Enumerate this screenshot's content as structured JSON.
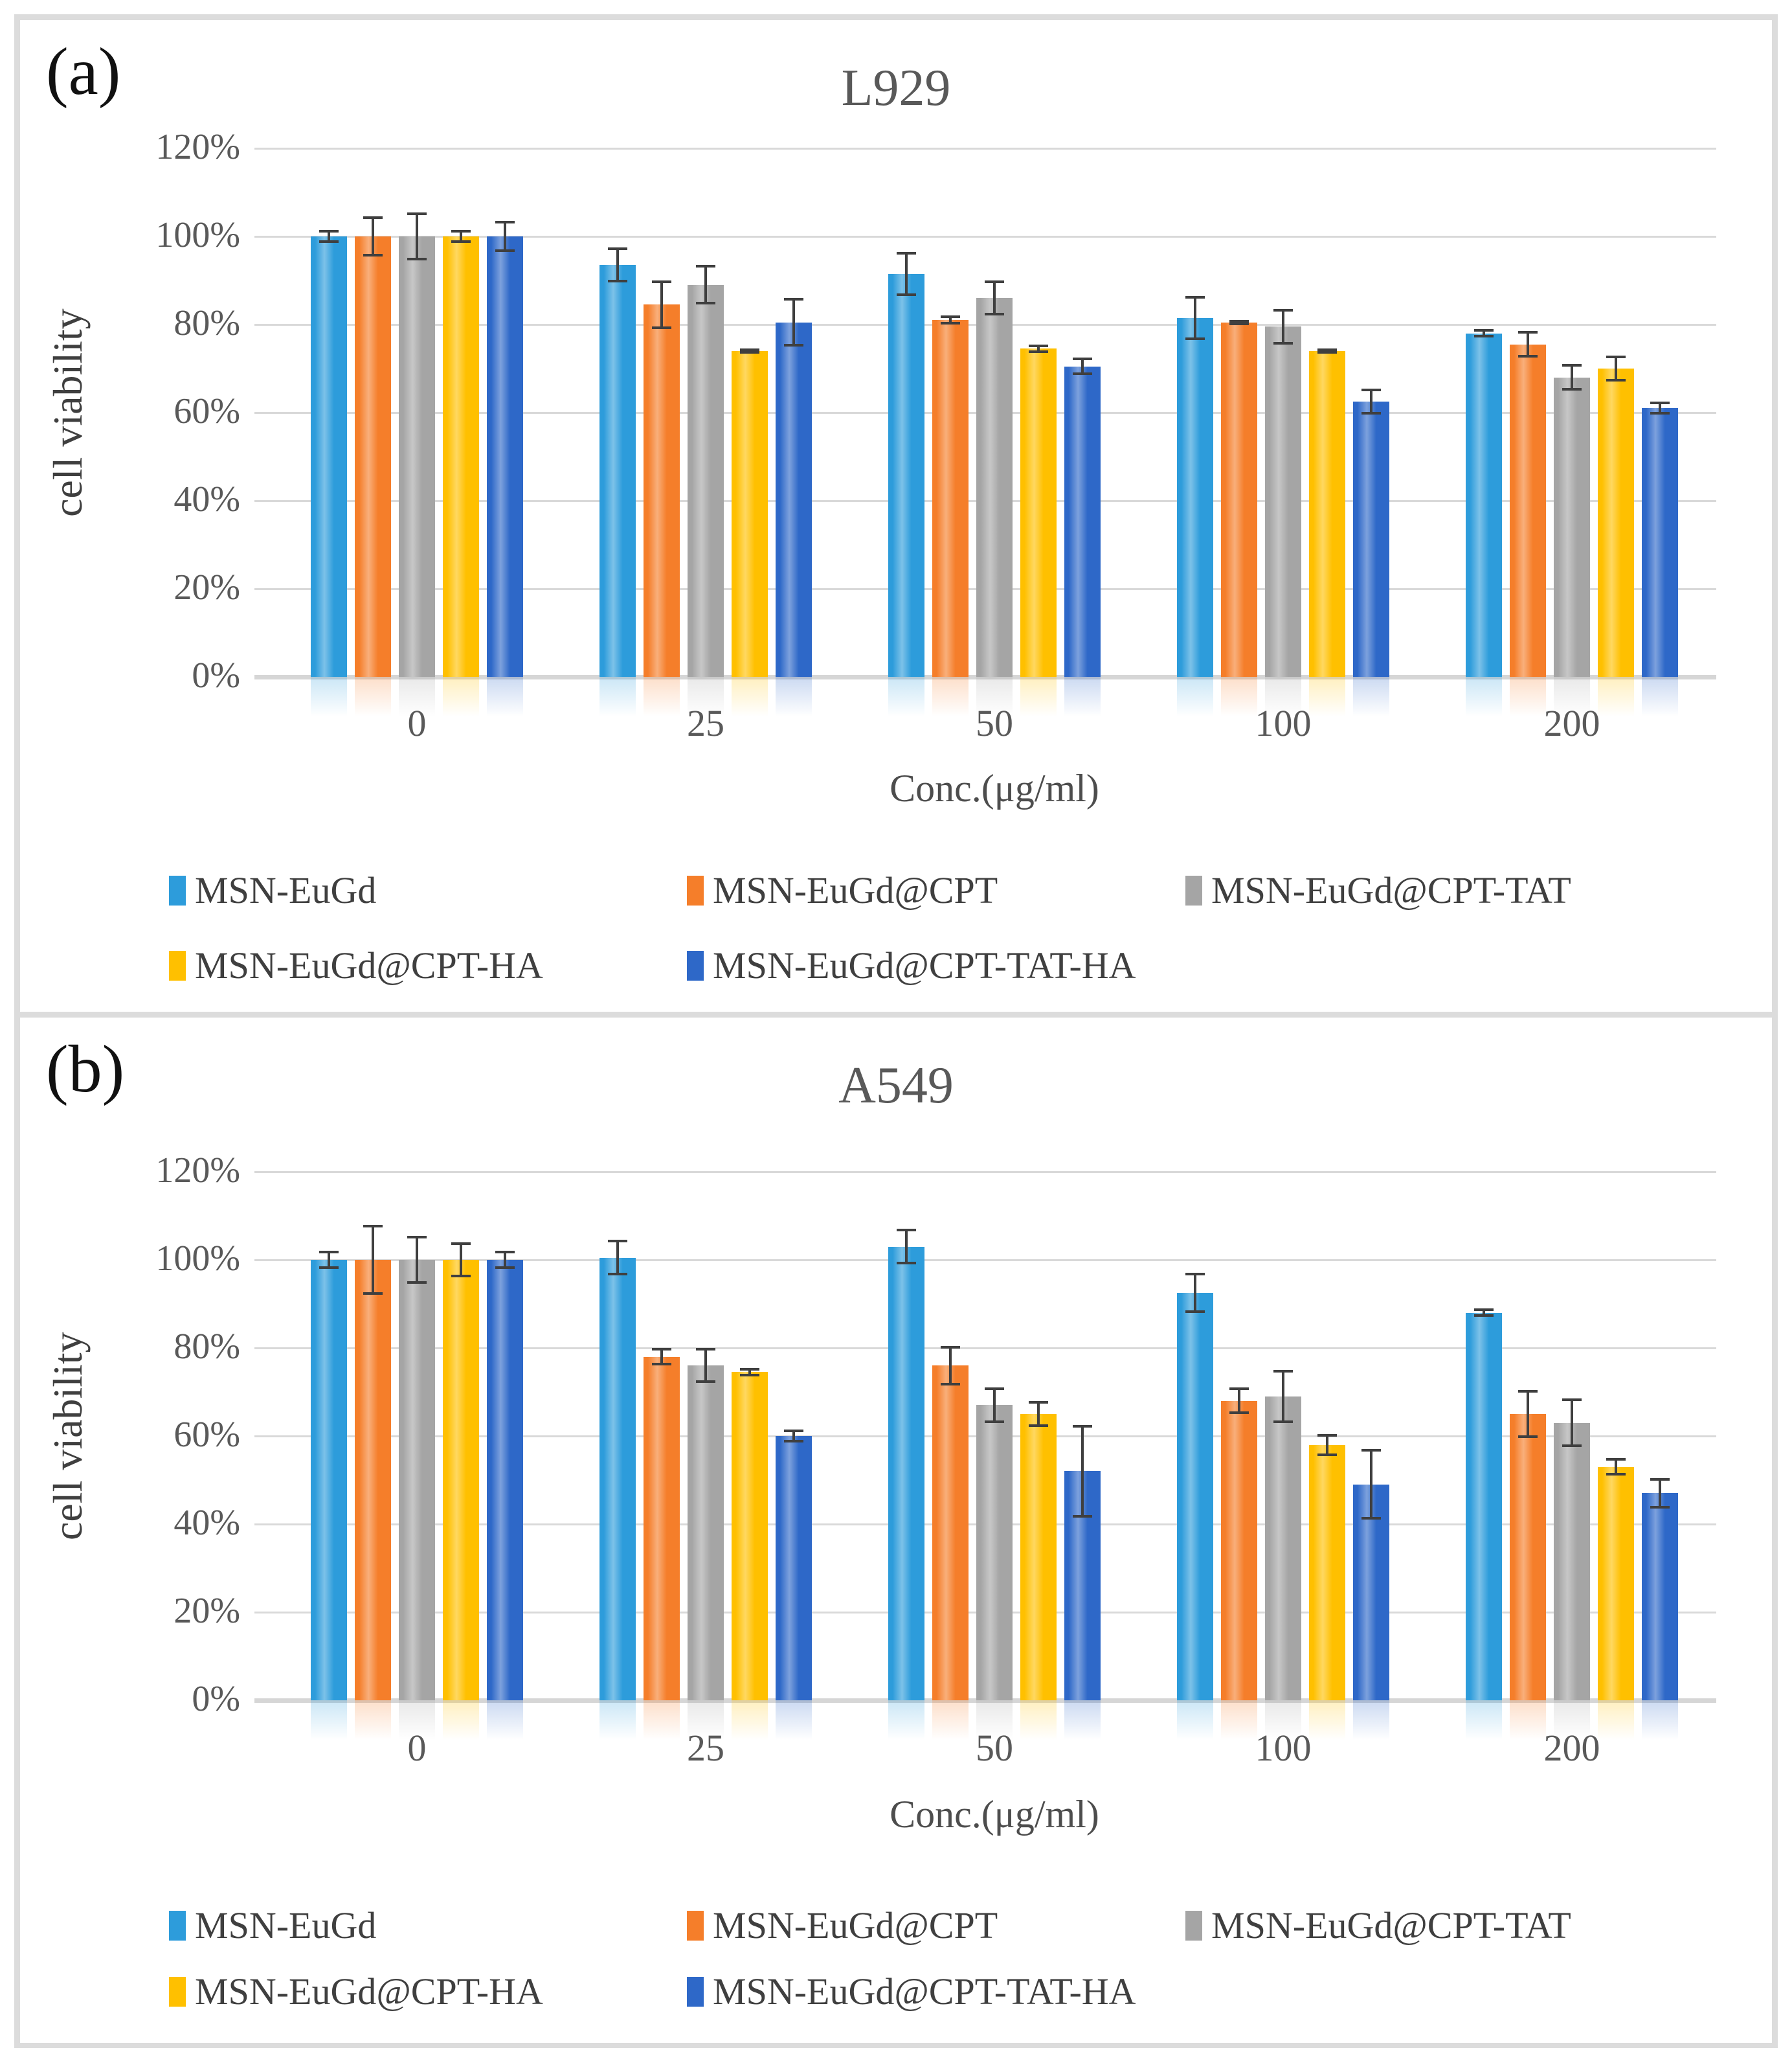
{
  "figure": {
    "panel_a_label": "(a)",
    "panel_b_label": "(b)"
  },
  "colors": {
    "frame_gray": "#dcdcdc",
    "gridline_gray": "#d9d9d9",
    "error_bar": "#3f3f3f",
    "title_text": "#595959",
    "tick_text": "#595959"
  },
  "chart_data": [
    {
      "type": "bar",
      "title": "L929",
      "xlabel": "Conc.(μg/ml)",
      "ylabel": "cell viability",
      "ylim": [
        0,
        120
      ],
      "grid": true,
      "legend_position": "below",
      "y_ticks": [
        "0%",
        "20%",
        "40%",
        "60%",
        "80%",
        "100%",
        "120%"
      ],
      "categories": [
        "0",
        "25",
        "50",
        "100",
        "200"
      ],
      "series": [
        {
          "name": "MSN-EuGd",
          "color": "#2D9CDB",
          "values": [
            100,
            93.5,
            91.5,
            81.5,
            78
          ],
          "errors": [
            1.5,
            4,
            5,
            5,
            1
          ]
        },
        {
          "name": "MSN-EuGd@CPT",
          "color": "#F57E2A",
          "values": [
            100,
            84.5,
            81,
            80.5,
            75.5
          ],
          "errors": [
            4.5,
            5.5,
            1,
            0.5,
            3
          ]
        },
        {
          "name": "MSN-EuGd@CPT-TAT",
          "color": "#A5A5A5",
          "values": [
            100,
            89,
            86,
            79.5,
            68
          ],
          "errors": [
            5.5,
            4.5,
            4,
            4,
            3
          ]
        },
        {
          "name": "MSN-EuGd@CPT-HA",
          "color": "#FFC000",
          "values": [
            100,
            74,
            74.5,
            74,
            70
          ],
          "errors": [
            1.5,
            0.5,
            1,
            0.5,
            3
          ]
        },
        {
          "name": "MSN-EuGd@CPT-TAT-HA",
          "color": "#2E68C8",
          "values": [
            100,
            80.5,
            70.5,
            62.5,
            61
          ],
          "errors": [
            3.5,
            5.5,
            2,
            3,
            1.5
          ]
        }
      ]
    },
    {
      "type": "bar",
      "title": "A549",
      "xlabel": "Conc.(μg/ml)",
      "ylabel": "cell viability",
      "ylim": [
        0,
        120
      ],
      "grid": true,
      "legend_position": "below",
      "y_ticks": [
        "0%",
        "20%",
        "40%",
        "60%",
        "80%",
        "100%",
        "120%"
      ],
      "categories": [
        "0",
        "25",
        "50",
        "100",
        "200"
      ],
      "series": [
        {
          "name": "MSN-EuGd",
          "color": "#2D9CDB",
          "values": [
            100,
            100.5,
            103,
            92.5,
            88
          ],
          "errors": [
            2,
            4,
            4,
            4.5,
            1
          ]
        },
        {
          "name": "MSN-EuGd@CPT",
          "color": "#F57E2A",
          "values": [
            100,
            78,
            76,
            68,
            65
          ],
          "errors": [
            8,
            2,
            4.5,
            3,
            5.5
          ]
        },
        {
          "name": "MSN-EuGd@CPT-TAT",
          "color": "#A5A5A5",
          "values": [
            100,
            76,
            67,
            69,
            63
          ],
          "errors": [
            5.5,
            4,
            4,
            6,
            5.5
          ]
        },
        {
          "name": "MSN-EuGd@CPT-HA",
          "color": "#FFC000",
          "values": [
            100,
            74.5,
            65,
            58,
            53
          ],
          "errors": [
            4,
            1,
            3,
            2.5,
            2
          ]
        },
        {
          "name": "MSN-EuGd@CPT-TAT-HA",
          "color": "#2E68C8",
          "values": [
            100,
            60,
            52,
            49,
            47
          ],
          "errors": [
            2,
            1.5,
            10.5,
            8,
            3.5
          ]
        }
      ]
    }
  ]
}
